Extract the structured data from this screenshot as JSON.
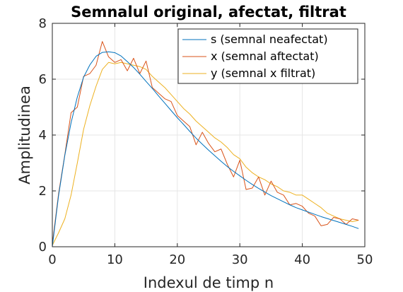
{
  "chart_data": {
    "type": "line",
    "title": "Semnalul original, afectat, filtrat",
    "xlabel": "Indexul de timp n",
    "ylabel": "Amplitudinea",
    "xlim": [
      0,
      50
    ],
    "ylim": [
      0,
      8
    ],
    "xticks": [
      0,
      10,
      20,
      30,
      40,
      50
    ],
    "yticks": [
      0,
      2,
      4,
      6,
      8
    ],
    "grid": true,
    "legend_position": "top-right",
    "series": [
      {
        "name": "s (semnal neafectat)",
        "color": "#0072BD",
        "x": [
          0,
          1,
          2,
          3,
          4,
          5,
          6,
          7,
          8,
          9,
          10,
          11,
          12,
          13,
          14,
          15,
          16,
          17,
          18,
          19,
          20,
          21,
          22,
          23,
          24,
          25,
          26,
          27,
          28,
          29,
          30,
          31,
          32,
          33,
          34,
          35,
          36,
          37,
          38,
          39,
          40,
          41,
          42,
          43,
          44,
          45,
          46,
          47,
          48,
          49
        ],
        "y": [
          0,
          1.83,
          3.27,
          4.44,
          5.36,
          6.07,
          6.51,
          6.82,
          6.96,
          6.98,
          6.95,
          6.83,
          6.63,
          6.42,
          6.18,
          5.92,
          5.67,
          5.4,
          5.14,
          4.88,
          4.62,
          4.38,
          4.13,
          3.89,
          3.67,
          3.46,
          3.26,
          3.06,
          2.87,
          2.7,
          2.54,
          2.38,
          2.23,
          2.09,
          1.96,
          1.83,
          1.72,
          1.61,
          1.5,
          1.4,
          1.32,
          1.24,
          1.16,
          1.08,
          1.01,
          0.94,
          0.87,
          0.8,
          0.73,
          0.65
        ]
      },
      {
        "name": "x (semnal aftectat)",
        "color": "#D95319",
        "x": [
          0,
          1,
          2,
          3,
          4,
          5,
          6,
          7,
          8,
          9,
          10,
          11,
          12,
          13,
          14,
          15,
          16,
          17,
          18,
          19,
          20,
          21,
          22,
          23,
          24,
          25,
          26,
          27,
          28,
          29,
          30,
          31,
          32,
          33,
          34,
          35,
          36,
          37,
          38,
          39,
          40,
          41,
          42,
          43,
          44,
          45,
          46,
          47,
          48,
          49
        ],
        "y": [
          0.1,
          1.9,
          3.3,
          4.8,
          5.0,
          6.1,
          6.2,
          6.5,
          7.35,
          6.8,
          6.6,
          6.7,
          6.3,
          6.75,
          6.2,
          6.65,
          5.7,
          5.5,
          5.3,
          5.2,
          4.7,
          4.5,
          4.3,
          3.65,
          4.1,
          3.7,
          3.4,
          3.5,
          2.95,
          2.5,
          3.1,
          2.05,
          2.1,
          2.5,
          1.85,
          2.35,
          1.95,
          1.85,
          1.5,
          1.55,
          1.45,
          1.2,
          1.1,
          0.75,
          0.8,
          1.05,
          1.0,
          0.8,
          1.0,
          0.95
        ]
      },
      {
        "name": "y (semnal x filtrat)",
        "color": "#EDB120",
        "x": [
          0,
          1,
          2,
          3,
          4,
          5,
          6,
          7,
          8,
          9,
          10,
          11,
          12,
          13,
          14,
          15,
          16,
          17,
          18,
          19,
          20,
          21,
          22,
          23,
          24,
          25,
          26,
          27,
          28,
          29,
          30,
          31,
          32,
          33,
          34,
          35,
          36,
          37,
          38,
          39,
          40,
          41,
          42,
          43,
          44,
          45,
          46,
          47,
          48,
          49
        ],
        "y": [
          0.05,
          0.5,
          1.0,
          1.85,
          3.0,
          4.2,
          5.05,
          5.75,
          6.35,
          6.6,
          6.55,
          6.6,
          6.55,
          6.5,
          6.45,
          6.35,
          6.1,
          5.9,
          5.7,
          5.45,
          5.2,
          4.95,
          4.75,
          4.5,
          4.3,
          4.1,
          3.9,
          3.75,
          3.55,
          3.3,
          3.15,
          2.85,
          2.65,
          2.5,
          2.4,
          2.25,
          2.15,
          2.0,
          1.95,
          1.85,
          1.85,
          1.7,
          1.55,
          1.4,
          1.2,
          1.1,
          1.0,
          0.95,
          0.9,
          0.95
        ]
      }
    ]
  }
}
